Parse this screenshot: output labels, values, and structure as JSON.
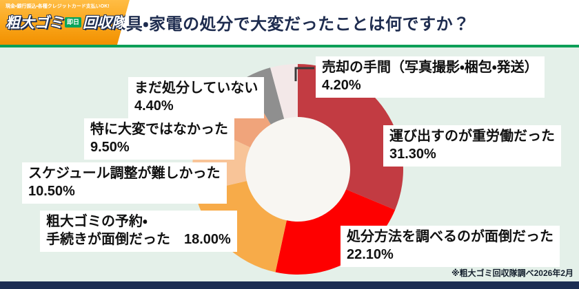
{
  "theme": {
    "background": "#e4f0e9",
    "accent_green": "#0c9f57",
    "navy": "#1c2d52",
    "header_bg": "#ffffff",
    "logo_orange": "#f9a51a",
    "donut_hole": "#f8f6f2"
  },
  "logo": {
    "tagline": "現金・銀行振込・各種クレジットカード支払いOK!",
    "name_left": "粗大ゴミ",
    "badge": "即日",
    "name_right": "回収隊!"
  },
  "header": {
    "title": "家具・家電の処分で大変だったことは何ですか？"
  },
  "source_note": "※粗大ゴミ回収隊調べ2026年2月",
  "chart_data": {
    "type": "pie",
    "subtype": "donut",
    "title": "家具・家電の処分で大変だったことは何ですか？",
    "unit": "%",
    "order": "clockwise from 12 o'clock",
    "segments": [
      {
        "label": "運び出すのが重労働だった",
        "value": 31.3,
        "display": "31.30%",
        "color": "#c23b42"
      },
      {
        "label": "処分方法を調べるのが面倒だった",
        "value": 22.1,
        "display": "22.10%",
        "color": "#fe0000"
      },
      {
        "label": "粗大ゴミの予約・手続きが面倒だった",
        "value": 18.0,
        "display": "18.00%",
        "color": "#f7ab49"
      },
      {
        "label": "スケジュール調整が難しかった",
        "value": 10.5,
        "display": "10.50%",
        "color": "#f8c498"
      },
      {
        "label": "特に大変ではなかった",
        "value": 9.5,
        "display": "9.50%",
        "color": "#f0a47b"
      },
      {
        "label": "まだ処分していない",
        "value": 4.4,
        "display": "4.40%",
        "color": "#8f8f8f"
      },
      {
        "label": "売却の手間（写真撮影・梱包・発送）",
        "value": 4.2,
        "display": "4.20%",
        "color": "#f3e8e8"
      }
    ]
  },
  "callouts": {
    "sell": {
      "line1": "売却の手間（写真撮影・梱包・発送）",
      "line2": "4.20%"
    },
    "carry": {
      "line1": "運び出すのが重労働だった",
      "line2": "31.30%"
    },
    "research": {
      "line1": "処分方法を調べるのが面倒だった",
      "line2": "22.10%"
    },
    "booking": {
      "line1": "粗大ゴミの予約・",
      "line2": "手続きが面倒だった　18.00%"
    },
    "schedule": {
      "line1": "スケジュール調整が難しかった",
      "line2": "10.50%"
    },
    "nothard": {
      "line1": "特に大変ではなかった",
      "line2": "9.50%"
    },
    "notyet": {
      "line1": "まだ処分していない",
      "line2": "4.40%"
    }
  }
}
